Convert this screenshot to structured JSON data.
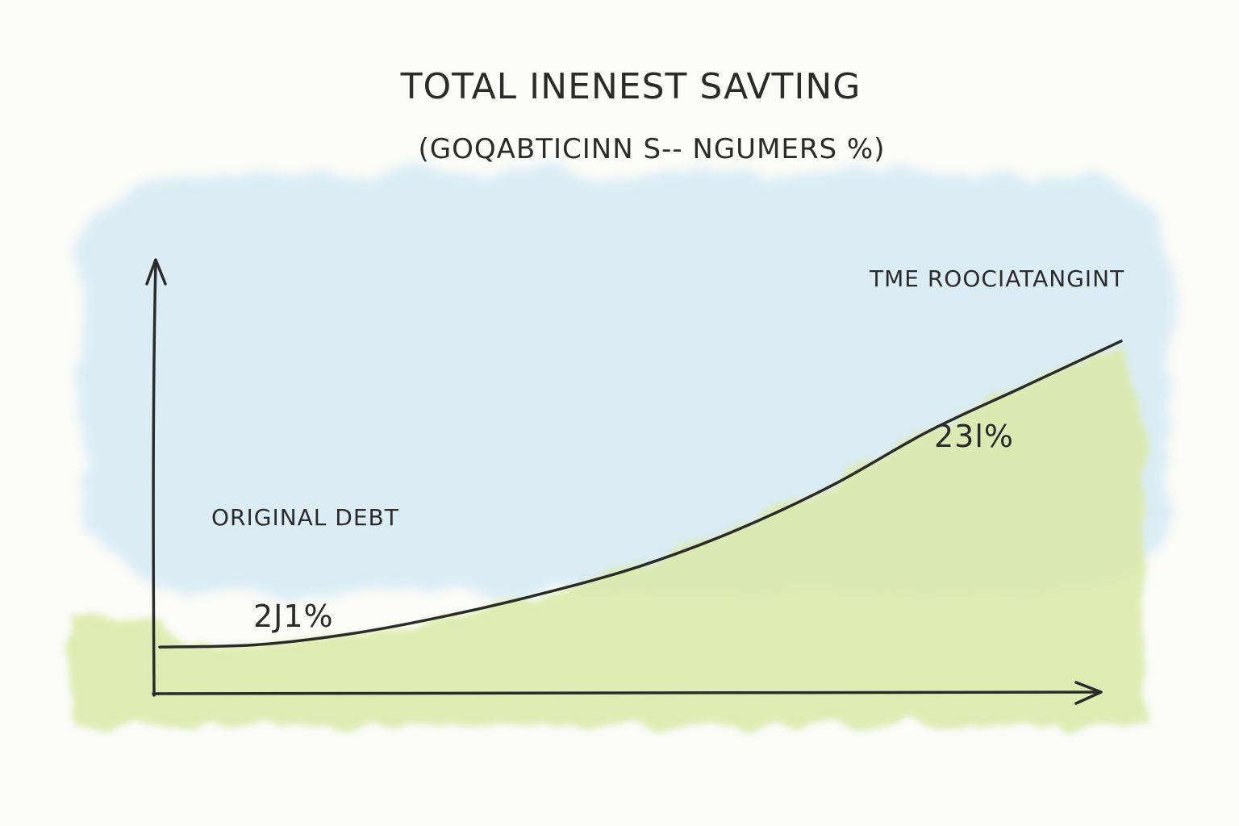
{
  "chart_data": {
    "type": "area",
    "title": "TOTAL INENEST SAVTING",
    "subtitle": "(GOQABTICINN S-- NGUMERS %)",
    "xlabel": "",
    "ylabel": "",
    "grid": false,
    "axes": {
      "x_arrow": true,
      "y_arrow": true,
      "ticks": false
    },
    "series": [
      {
        "name": "TME ROOCIATANGINT",
        "x": [
          0,
          1,
          2,
          3,
          4,
          5,
          6,
          7,
          8,
          9,
          10
        ],
        "values": [
          10,
          10.5,
          13,
          17,
          22,
          28,
          36,
          46,
          58,
          68,
          78
        ]
      }
    ],
    "annotations": [
      {
        "text": "ORIGINAL DEBT",
        "kind": "label"
      },
      {
        "text": "2Ј1%",
        "kind": "value"
      },
      {
        "text": "23l%",
        "kind": "value"
      }
    ],
    "colors": {
      "line": "#2b2b2b",
      "sky_wash": "#d4e9f4",
      "grass_wash": "#dce9a8",
      "background": "#fbfbf8"
    }
  }
}
